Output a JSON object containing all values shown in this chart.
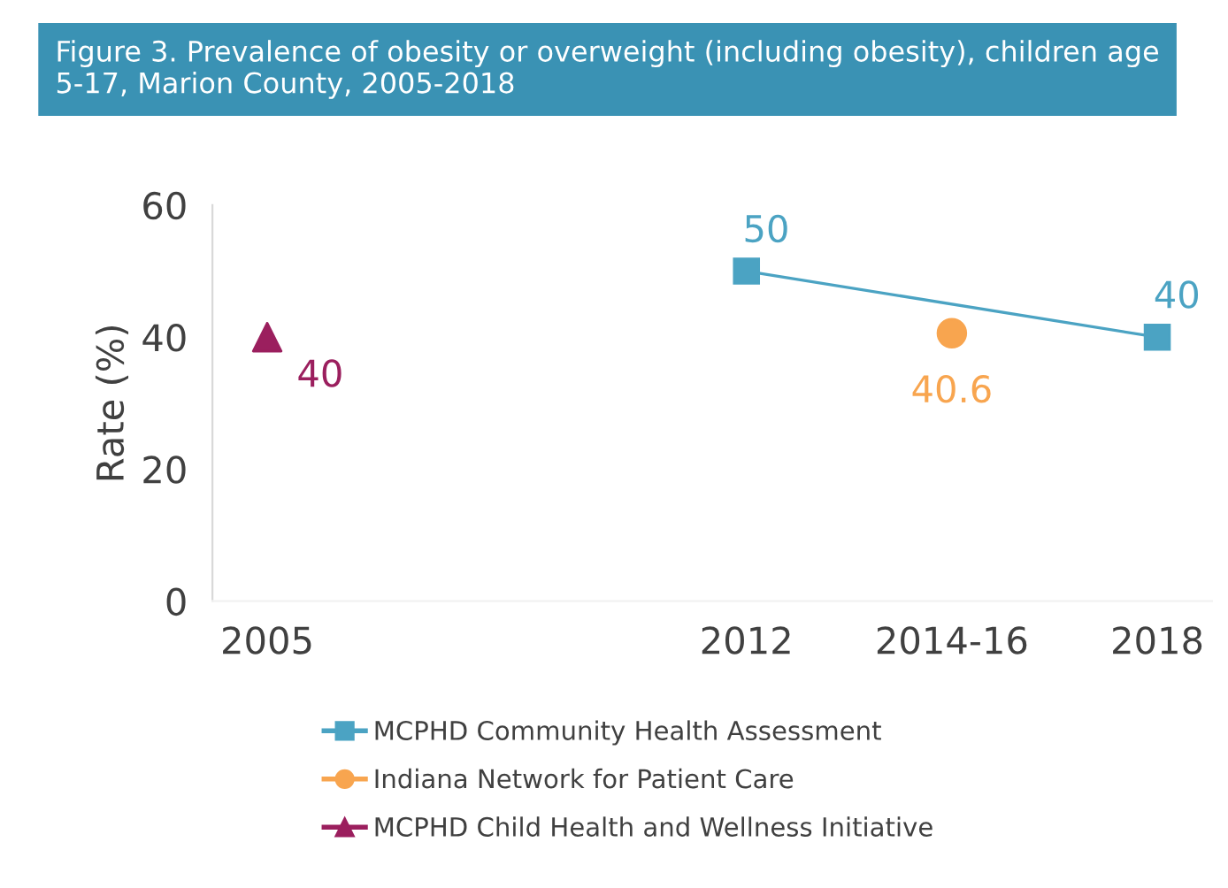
{
  "chart_data": {
    "type": "line",
    "title": "Figure 3. Prevalence of obesity or overweight (including obesity), children age 5-17, Marion County, 2005-2018",
    "ylabel": "Rate (%)",
    "xlim": [
      2004.2,
      2018.8
    ],
    "xticks": [
      2005,
      2012,
      {
        "value": 2015,
        "label": "2014-16"
      },
      2018
    ],
    "ylim": [
      0,
      60
    ],
    "yticks": [
      0,
      20,
      40,
      60
    ],
    "grid": false,
    "legend": "bottom",
    "data_labels": true,
    "series": [
      {
        "name": "MCPHD Community Health Assessment",
        "marker": "square",
        "color": "#4ba3c3",
        "x": [
          2012,
          2018
        ],
        "values": [
          50,
          40
        ]
      },
      {
        "name": "Indiana Network for Patient Care",
        "type": "scatter",
        "marker": "circle",
        "color": "#f8a54f",
        "x": [
          2015
        ],
        "values": [
          40.6
        ]
      },
      {
        "name": "MCPHD Child Health and Wellness Initiative",
        "type": "scatter",
        "marker": "triangle",
        "color": "#9b1f5e",
        "x": [
          2005
        ],
        "values": [
          40
        ]
      }
    ]
  }
}
